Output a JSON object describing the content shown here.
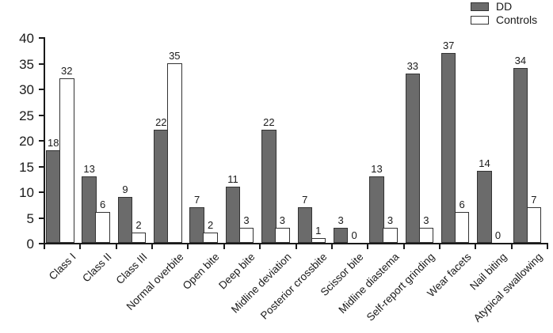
{
  "chart_data": {
    "type": "bar",
    "title": "",
    "xlabel": "",
    "ylabel": "",
    "categories": [
      "Class I",
      "Class II",
      "Class III",
      "Normal overbite",
      "Open bite",
      "Deep bite",
      "Midline deviation",
      "Posterior crossbite",
      "Scissor bite",
      "Midline diastema",
      "Self-report grinding",
      "Wear facets",
      "Nail biting",
      "Atypical swallowing"
    ],
    "series": [
      {
        "name": "DD",
        "color": "#6b6b6b",
        "values": [
          18,
          13,
          9,
          22,
          7,
          11,
          22,
          7,
          3,
          13,
          33,
          37,
          14,
          34
        ]
      },
      {
        "name": "Controls",
        "color": "#ffffff",
        "values": [
          32,
          6,
          2,
          35,
          2,
          3,
          3,
          1,
          0,
          3,
          3,
          6,
          0,
          7
        ]
      }
    ],
    "ylim": [
      0,
      40
    ],
    "ytick_step": 5,
    "yticks": [
      0,
      5,
      10,
      15,
      20,
      25,
      30,
      35,
      40
    ],
    "grid": false,
    "bar_value_labels": true,
    "legend_position": "top-right",
    "x_label_rotation_deg": 45
  },
  "colors": {
    "background": "#ffffff",
    "axis": "#1a1a1a",
    "bar_border": "#333333",
    "text": "#1a1a1a",
    "dd_fill": "#6b6b6b",
    "controls_fill": "#ffffff"
  }
}
